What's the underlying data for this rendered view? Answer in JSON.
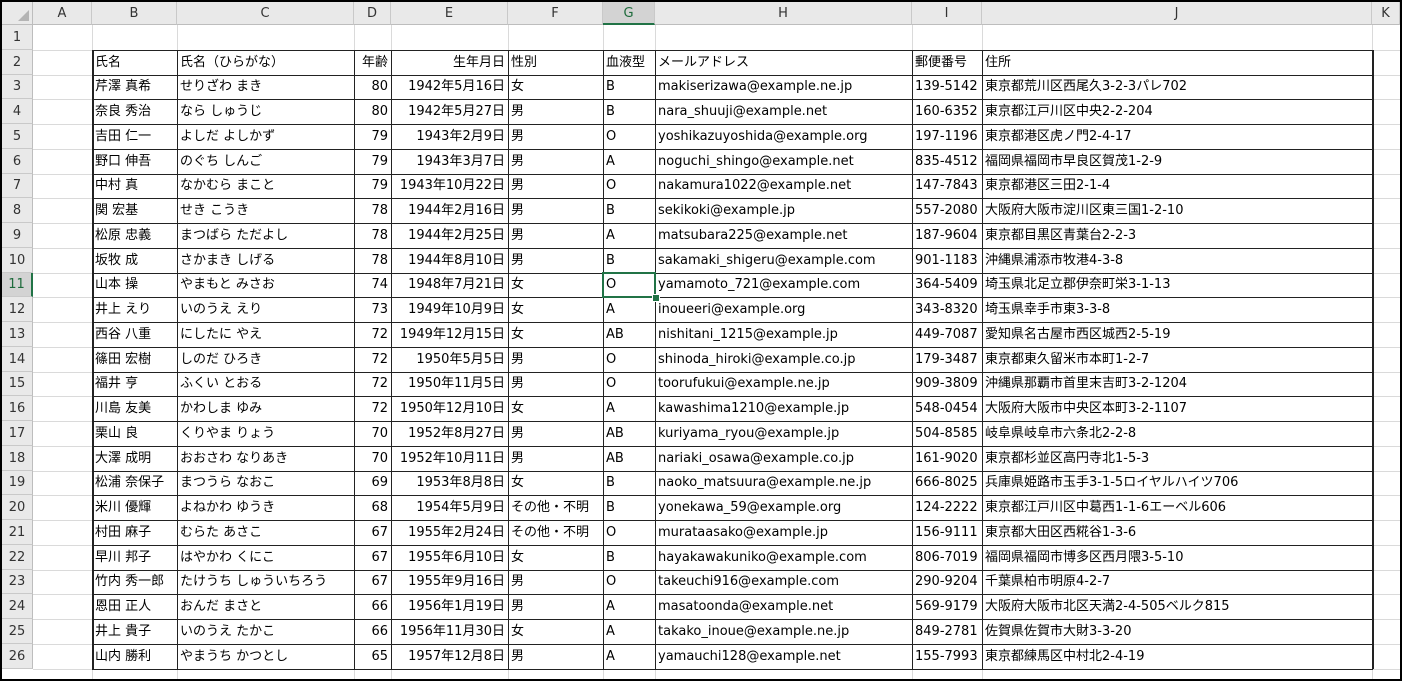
{
  "sheet": {
    "active_cell": "G11",
    "columns": [
      "A",
      "B",
      "C",
      "D",
      "E",
      "F",
      "G",
      "H",
      "I",
      "J",
      "K"
    ],
    "row_numbers": [
      "1",
      "2",
      "3",
      "4",
      "5",
      "6",
      "7",
      "8",
      "9",
      "10",
      "11",
      "12",
      "13",
      "14",
      "15",
      "16",
      "17",
      "18",
      "19",
      "20",
      "21",
      "22",
      "23",
      "24",
      "25",
      "26"
    ],
    "headers": [
      "氏名",
      "氏名（ひらがな）",
      "年齢",
      "生年月日",
      "性別",
      "血液型",
      "メールアドレス",
      "郵便番号",
      "住所"
    ],
    "rows": [
      [
        "芹澤 真希",
        "せりざわ まき",
        "80",
        "1942年5月16日",
        "女",
        "B",
        "makiserizawa@example.ne.jp",
        "139-5142",
        "東京都荒川区西尾久3-2-3パレ702"
      ],
      [
        "奈良 秀治",
        "なら しゅうじ",
        "80",
        "1942年5月27日",
        "男",
        "B",
        "nara_shuuji@example.net",
        "160-6352",
        "東京都江戸川区中央2-2-204"
      ],
      [
        "吉田 仁一",
        "よしだ よしかず",
        "79",
        "1943年2月9日",
        "男",
        "O",
        "yoshikazuyoshida@example.org",
        "197-1196",
        "東京都港区虎ノ門2-4-17"
      ],
      [
        "野口 伸吾",
        "のぐち しんご",
        "79",
        "1943年3月7日",
        "男",
        "A",
        "noguchi_shingo@example.net",
        "835-4512",
        "福岡県福岡市早良区賀茂1-2-9"
      ],
      [
        "中村 真",
        "なかむら まこと",
        "79",
        "1943年10月22日",
        "男",
        "O",
        "nakamura1022@example.net",
        "147-7843",
        "東京都港区三田2-1-4"
      ],
      [
        "関 宏基",
        "せき こうき",
        "78",
        "1944年2月16日",
        "男",
        "B",
        "sekikoki@example.jp",
        "557-2080",
        "大阪府大阪市淀川区東三国1-2-10"
      ],
      [
        "松原 忠義",
        "まつばら ただよし",
        "78",
        "1944年2月25日",
        "男",
        "A",
        "matsubara225@example.net",
        "187-9604",
        "東京都目黒区青葉台2-2-3"
      ],
      [
        "坂牧 成",
        "さかまき しげる",
        "78",
        "1944年8月10日",
        "男",
        "B",
        "sakamaki_shigeru@example.com",
        "901-1183",
        "沖縄県浦添市牧港4-3-8"
      ],
      [
        "山本 操",
        "やまもと みさお",
        "74",
        "1948年7月21日",
        "女",
        "O",
        "yamamoto_721@example.com",
        "364-5409",
        "埼玉県北足立郡伊奈町栄3-1-13"
      ],
      [
        "井上 えり",
        "いのうえ えり",
        "73",
        "1949年10月9日",
        "女",
        "A",
        "inoueeri@example.org",
        "343-8320",
        "埼玉県幸手市東3-3-8"
      ],
      [
        "西谷 八重",
        "にしたに やえ",
        "72",
        "1949年12月15日",
        "女",
        "AB",
        "nishitani_1215@example.jp",
        "449-7087",
        "愛知県名古屋市西区城西2-5-19"
      ],
      [
        "篠田 宏樹",
        "しのだ ひろき",
        "72",
        "1950年5月5日",
        "男",
        "O",
        "shinoda_hiroki@example.co.jp",
        "179-3487",
        "東京都東久留米市本町1-2-7"
      ],
      [
        "福井 亨",
        "ふくい とおる",
        "72",
        "1950年11月5日",
        "男",
        "O",
        "toorufukui@example.ne.jp",
        "909-3809",
        "沖縄県那覇市首里末吉町3-2-1204"
      ],
      [
        "川島 友美",
        "かわしま ゆみ",
        "72",
        "1950年12月10日",
        "女",
        "A",
        "kawashima1210@example.jp",
        "548-0454",
        "大阪府大阪市中央区本町3-2-1107"
      ],
      [
        "栗山 良",
        "くりやま りょう",
        "70",
        "1952年8月27日",
        "男",
        "AB",
        "kuriyama_ryou@example.jp",
        "504-8585",
        "岐阜県岐阜市六条北2-2-8"
      ],
      [
        "大澤 成明",
        "おおさわ なりあき",
        "70",
        "1952年10月11日",
        "男",
        "AB",
        "nariaki_osawa@example.co.jp",
        "161-9020",
        "東京都杉並区高円寺北1-5-3"
      ],
      [
        "松浦 奈保子",
        "まつうら なおこ",
        "69",
        "1953年8月8日",
        "女",
        "B",
        "naoko_matsuura@example.ne.jp",
        "666-8025",
        "兵庫県姫路市玉手3-1-5ロイヤルハイツ706"
      ],
      [
        "米川 優輝",
        "よねかわ ゆうき",
        "68",
        "1954年5月9日",
        "その他・不明",
        "B",
        "yonekawa_59@example.org",
        "124-2222",
        "東京都江戸川区中葛西1-1-6エーベル606"
      ],
      [
        "村田 麻子",
        "むらた あさこ",
        "67",
        "1955年2月24日",
        "その他・不明",
        "O",
        "murataasako@example.jp",
        "156-9111",
        "東京都大田区西糀谷1-3-6"
      ],
      [
        "早川 邦子",
        "はやかわ くにこ",
        "67",
        "1955年6月10日",
        "女",
        "B",
        "hayakawakuniko@example.com",
        "806-7019",
        "福岡県福岡市博多区西月隈3-5-10"
      ],
      [
        "竹内 秀一郎",
        "たけうち しゅういちろう",
        "67",
        "1955年9月16日",
        "男",
        "O",
        "takeuchi916@example.com",
        "290-9204",
        "千葉県柏市明原4-2-7"
      ],
      [
        "恩田 正人",
        "おんだ まさと",
        "66",
        "1956年1月19日",
        "男",
        "A",
        "masatoonda@example.net",
        "569-9179",
        "大阪府大阪市北区天満2-4-505ベルク815"
      ],
      [
        "井上 貴子",
        "いのうえ たかこ",
        "66",
        "1956年11月30日",
        "女",
        "A",
        "takako_inoue@example.ne.jp",
        "849-2781",
        "佐賀県佐賀市大財3-3-20"
      ],
      [
        "山内 勝利",
        "やまうち かつとし",
        "65",
        "1957年12月8日",
        "男",
        "A",
        "yamauchi128@example.net",
        "155-7993",
        "東京都練馬区中村北2-4-19"
      ]
    ]
  }
}
